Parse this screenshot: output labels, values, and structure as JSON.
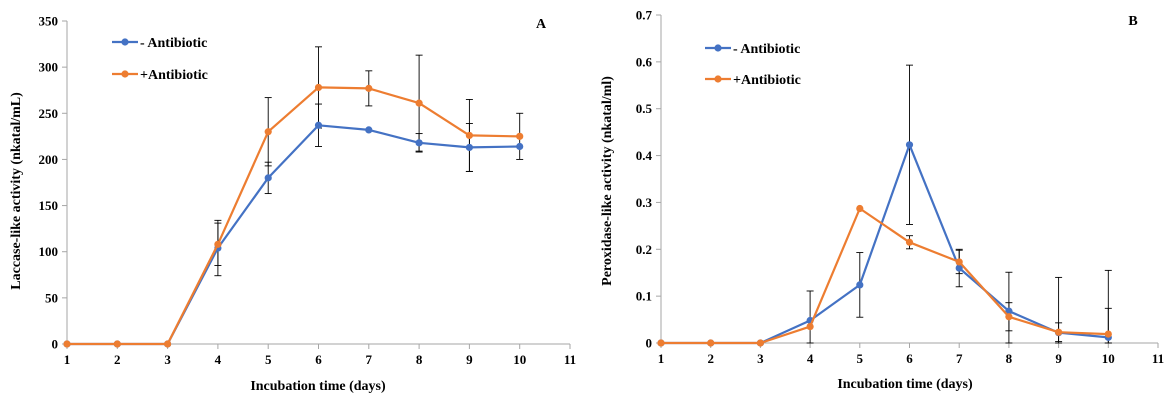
{
  "colors": {
    "series_minus": "#4472C4",
    "series_plus": "#ED7D31",
    "axis": "#a6a6a6",
    "error_bar": "#000000"
  },
  "chart_data": [
    {
      "type": "line",
      "panel_label": "A",
      "xlabel": "Incubation time (days)",
      "ylabel": "Laccase-like activity (nkatal/mL)",
      "xlim": [
        1,
        11
      ],
      "ylim": [
        0,
        350
      ],
      "xticks": [
        1,
        2,
        3,
        4,
        5,
        6,
        7,
        8,
        9,
        10,
        11
      ],
      "yticks": [
        0,
        50,
        100,
        150,
        200,
        250,
        300,
        350
      ],
      "ytick_labels": [
        "0",
        "50",
        "100",
        "150",
        "200",
        "250",
        "300",
        "350"
      ],
      "grid": false,
      "legend_position": "top-left",
      "x": [
        1,
        2,
        3,
        4,
        5,
        6,
        7,
        8,
        9,
        10
      ],
      "series": [
        {
          "name": "- Antibiotic",
          "color": "#4472C4",
          "values": [
            0,
            0,
            0,
            104,
            180,
            237,
            232,
            218,
            213,
            214
          ],
          "errors": [
            0,
            0,
            0,
            30,
            17,
            23,
            0,
            10,
            26,
            0
          ]
        },
        {
          "name": "+Antibiotic",
          "color": "#ED7D31",
          "values": [
            0,
            0,
            0,
            108,
            230,
            278,
            277,
            261,
            226,
            225
          ],
          "errors": [
            0,
            0,
            0,
            23,
            37,
            44,
            19,
            52,
            39,
            25
          ]
        }
      ]
    },
    {
      "type": "line",
      "panel_label": "B",
      "xlabel": "Incubation time (days)",
      "ylabel": "Peroxidase-like activity (nkatal/ml)",
      "xlim": [
        1,
        11
      ],
      "ylim": [
        0,
        0.7
      ],
      "xticks": [
        1,
        2,
        3,
        4,
        5,
        6,
        7,
        8,
        9,
        10,
        11
      ],
      "yticks": [
        0,
        0.1,
        0.2,
        0.3,
        0.4,
        0.5,
        0.6,
        0.7
      ],
      "ytick_labels": [
        "0",
        "0.1",
        "0.2",
        "0.3",
        "0.4",
        "0.5",
        "0.6",
        "0.7"
      ],
      "grid": false,
      "legend_position": "top-left",
      "x": [
        1,
        2,
        3,
        4,
        5,
        6,
        7,
        8,
        9,
        10
      ],
      "series": [
        {
          "name": "- Antibiotic",
          "color": "#4472C4",
          "values": [
            0,
            0,
            0,
            0.048,
            0.124,
            0.423,
            0.16,
            0.068,
            0.022,
            0.012
          ],
          "errors": [
            0,
            0,
            0,
            0.063,
            0.069,
            0.17,
            0.04,
            0.083,
            0.118,
            0.143
          ]
        },
        {
          "name": "+Antibiotic",
          "color": "#ED7D31",
          "values": [
            0,
            0,
            0,
            0.035,
            0.287,
            0.215,
            0.173,
            0.056,
            0.023,
            0.019
          ],
          "errors": [
            0,
            0,
            0,
            0,
            0,
            0.014,
            0.025,
            0.03,
            0.02,
            0.055
          ]
        }
      ]
    }
  ]
}
